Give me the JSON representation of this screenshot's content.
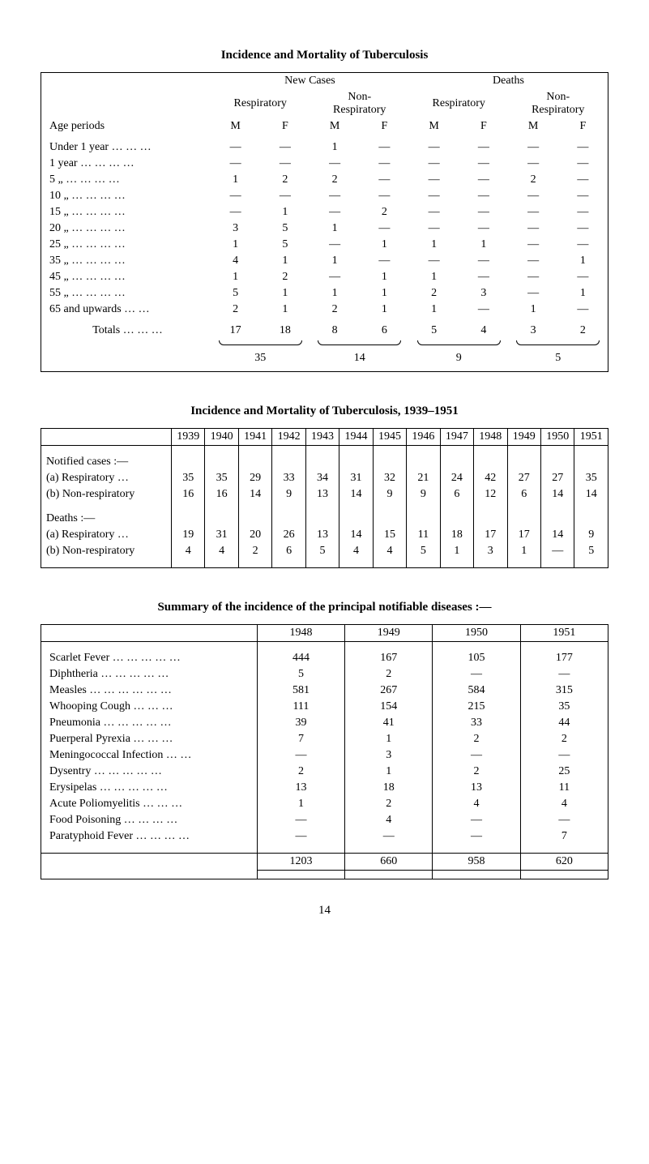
{
  "table1": {
    "title": "Incidence and Mortality of Tuberculosis",
    "group_headers": [
      "New Cases",
      "Deaths"
    ],
    "sub_headers": [
      "Respiratory",
      "Non-\nRespiratory",
      "Respiratory",
      "Non-\nRespiratory"
    ],
    "age_label": "Age periods",
    "mf": [
      "M",
      "F",
      "M",
      "F",
      "M",
      "F",
      "M",
      "F"
    ],
    "rows": [
      {
        "label": "Under 1 year … … …",
        "v": [
          "—",
          "—",
          "1",
          "—",
          "—",
          "—",
          "—",
          "—"
        ]
      },
      {
        "label": "1 year … … … …",
        "v": [
          "—",
          "—",
          "—",
          "—",
          "—",
          "—",
          "—",
          "—"
        ]
      },
      {
        "label": "5   „   … … … …",
        "v": [
          "1",
          "2",
          "2",
          "—",
          "—",
          "—",
          "2",
          "—"
        ]
      },
      {
        "label": "10  „   … … … …",
        "v": [
          "—",
          "—",
          "—",
          "—",
          "—",
          "—",
          "—",
          "—"
        ]
      },
      {
        "label": "15  „   … … … …",
        "v": [
          "—",
          "1",
          "—",
          "2",
          "—",
          "—",
          "—",
          "—"
        ]
      },
      {
        "label": "20  „   … … … …",
        "v": [
          "3",
          "5",
          "1",
          "—",
          "—",
          "—",
          "—",
          "—"
        ]
      },
      {
        "label": "25  „   … … … …",
        "v": [
          "1",
          "5",
          "—",
          "1",
          "1",
          "1",
          "—",
          "—"
        ]
      },
      {
        "label": "35  „   … … … …",
        "v": [
          "4",
          "1",
          "1",
          "—",
          "—",
          "—",
          "—",
          "1"
        ]
      },
      {
        "label": "45  „   … … … …",
        "v": [
          "1",
          "2",
          "—",
          "1",
          "1",
          "—",
          "—",
          "—"
        ]
      },
      {
        "label": "55  „   … … … …",
        "v": [
          "5",
          "1",
          "1",
          "1",
          "2",
          "3",
          "—",
          "1"
        ]
      },
      {
        "label": "65 and upwards … …",
        "v": [
          "2",
          "1",
          "2",
          "1",
          "1",
          "—",
          "1",
          "—"
        ]
      }
    ],
    "totals_label": "Totals  … … …",
    "totals": [
      "17",
      "18",
      "8",
      "6",
      "5",
      "4",
      "3",
      "2"
    ],
    "group_totals": [
      "35",
      "14",
      "9",
      "5"
    ]
  },
  "table2": {
    "title": "Incidence and Mortality of Tuberculosis, 1939–1951",
    "years": [
      "1939",
      "1940",
      "1941",
      "1942",
      "1943",
      "1944",
      "1945",
      "1946",
      "1947",
      "1948",
      "1949",
      "1950",
      "1951"
    ],
    "sections": [
      {
        "label": "Notified cases :—",
        "rows": [
          {
            "label": "(a) Respiratory   …",
            "v": [
              "35",
              "35",
              "29",
              "33",
              "34",
              "31",
              "32",
              "21",
              "24",
              "42",
              "27",
              "27",
              "35"
            ]
          },
          {
            "label": "(b) Non-respiratory",
            "v": [
              "16",
              "16",
              "14",
              "9",
              "13",
              "14",
              "9",
              "9",
              "6",
              "12",
              "6",
              "14",
              "14"
            ]
          }
        ]
      },
      {
        "label": "Deaths :—",
        "rows": [
          {
            "label": "(a) Respiratory   …",
            "v": [
              "19",
              "31",
              "20",
              "26",
              "13",
              "14",
              "15",
              "11",
              "18",
              "17",
              "17",
              "14",
              "9"
            ]
          },
          {
            "label": "(b) Non-respiratory",
            "v": [
              "4",
              "4",
              "2",
              "6",
              "5",
              "4",
              "4",
              "5",
              "1",
              "3",
              "1",
              "—",
              "5"
            ]
          }
        ]
      }
    ]
  },
  "table3": {
    "title": "Summary of the incidence of the principal notifiable diseases :—",
    "years": [
      "1948",
      "1949",
      "1950",
      "1951"
    ],
    "rows": [
      {
        "label": "Scarlet Fever … … … … …",
        "v": [
          "444",
          "167",
          "105",
          "177"
        ]
      },
      {
        "label": "Diphtheria    … … … … …",
        "v": [
          "5",
          "2",
          "—",
          "—"
        ]
      },
      {
        "label": "Measles   … … … … … …",
        "v": [
          "581",
          "267",
          "584",
          "315"
        ]
      },
      {
        "label": "Whooping Cough     … … …",
        "v": [
          "111",
          "154",
          "215",
          "35"
        ]
      },
      {
        "label": "Pneumonia    … … … … …",
        "v": [
          "39",
          "41",
          "33",
          "44"
        ]
      },
      {
        "label": "Puerperal Pyrexia     … … …",
        "v": [
          "7",
          "1",
          "2",
          "2"
        ]
      },
      {
        "label": "Meningococcal Infection   … …",
        "v": [
          "—",
          "3",
          "—",
          "—"
        ]
      },
      {
        "label": "Dysentry     … … … … …",
        "v": [
          "2",
          "1",
          "2",
          "25"
        ]
      },
      {
        "label": "Erysipelas    … … … … …",
        "v": [
          "13",
          "18",
          "13",
          "11"
        ]
      },
      {
        "label": "Acute Poliomyelitis    … … …",
        "v": [
          "1",
          "2",
          "4",
          "4"
        ]
      },
      {
        "label": "Food Poisoning    … … … …",
        "v": [
          "—",
          "4",
          "—",
          "—"
        ]
      },
      {
        "label": "Paratyphoid Fever … … … …",
        "v": [
          "—",
          "—",
          "—",
          "7"
        ]
      }
    ],
    "totals": [
      "1203",
      "660",
      "958",
      "620"
    ]
  },
  "page_number": "14"
}
